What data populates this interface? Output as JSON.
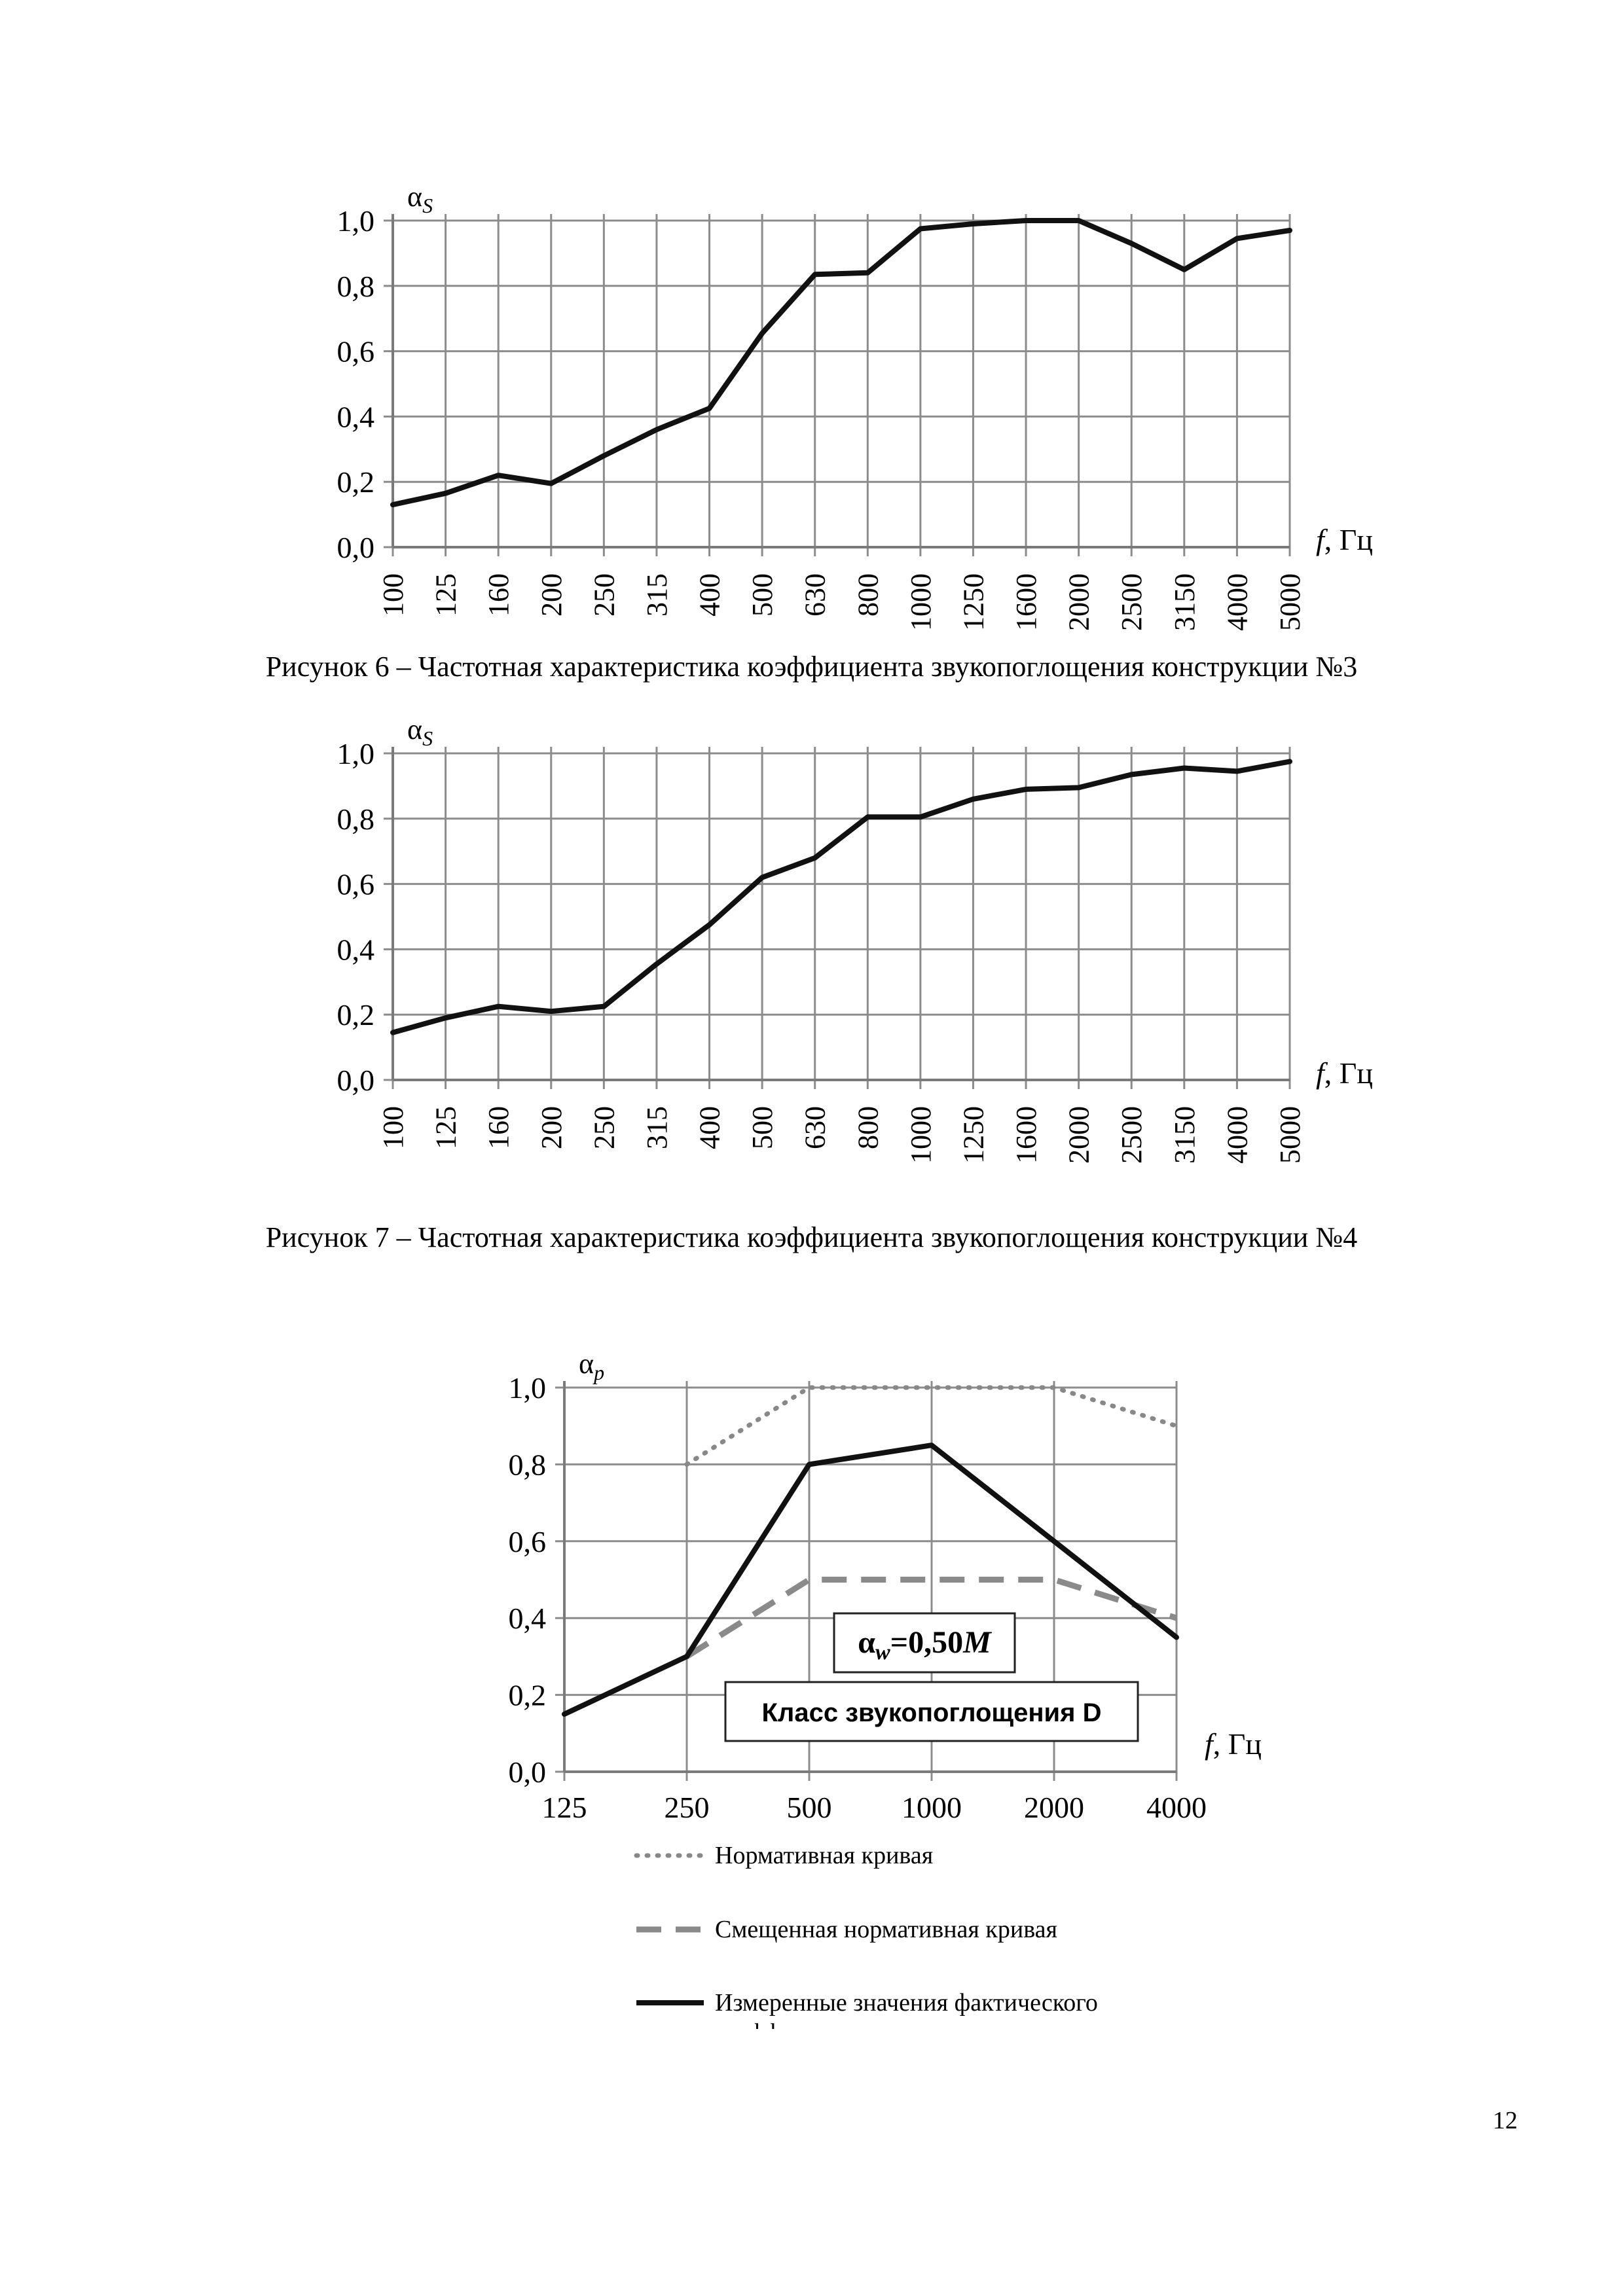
{
  "chart_data": [
    {
      "type": "line",
      "ylabel": "αS",
      "xlabel": "f, Гц",
      "ylim": [
        0,
        1.0
      ],
      "grid": true,
      "y_ticks": [
        "0,0",
        "0,2",
        "0,4",
        "0,6",
        "0,8",
        "1,0"
      ],
      "categories": [
        "100",
        "125",
        "160",
        "200",
        "250",
        "315",
        "400",
        "500",
        "630",
        "800",
        "1000",
        "1250",
        "1600",
        "2000",
        "2500",
        "3150",
        "4000",
        "5000"
      ],
      "series": [
        {
          "values": [
            0.13,
            0.165,
            0.22,
            0.195,
            0.28,
            0.36,
            0.425,
            0.655,
            0.835,
            0.84,
            0.975,
            0.99,
            1.0,
            1.0,
            0.93,
            0.85,
            0.945,
            0.97
          ],
          "color": "#111111"
        }
      ],
      "caption": "Рисунок 6 – Частотная характеристика коэффициента звукопоглощения конструкции №3"
    },
    {
      "type": "line",
      "ylabel": "αS",
      "xlabel": "f, Гц",
      "ylim": [
        0,
        1.0
      ],
      "grid": true,
      "y_ticks": [
        "0,0",
        "0,2",
        "0,4",
        "0,6",
        "0,8",
        "1,0"
      ],
      "categories": [
        "100",
        "125",
        "160",
        "200",
        "250",
        "315",
        "400",
        "500",
        "630",
        "800",
        "1000",
        "1250",
        "1600",
        "2000",
        "2500",
        "3150",
        "4000",
        "5000"
      ],
      "series": [
        {
          "values": [
            0.145,
            0.19,
            0.225,
            0.21,
            0.225,
            0.355,
            0.475,
            0.62,
            0.68,
            0.805,
            0.805,
            0.86,
            0.89,
            0.895,
            0.935,
            0.955,
            0.945,
            0.975
          ],
          "color": "#111111"
        }
      ],
      "caption": "Рисунок 7 – Частотная характеристика коэффициента звукопоглощения конструкции №4"
    },
    {
      "type": "line",
      "ylabel": "αp",
      "xlabel": "f, Гц",
      "ylim": [
        0,
        1.0
      ],
      "grid": true,
      "y_ticks": [
        "0,0",
        "0,2",
        "0,4",
        "0,6",
        "0,8",
        "1,0"
      ],
      "categories": [
        "125",
        "250",
        "500",
        "1000",
        "2000",
        "4000"
      ],
      "series": [
        {
          "name": "Нормативная кривая",
          "values": [
            null,
            0.8,
            1.0,
            1.0,
            1.0,
            0.9
          ],
          "color": "#888888",
          "style": "dotted"
        },
        {
          "name": "Смещенная нормативная кривая",
          "values": [
            null,
            0.3,
            0.5,
            0.5,
            0.5,
            0.4
          ],
          "color": "#8a8a8a",
          "style": "dashed"
        },
        {
          "name": "Измеренные значения фактического коэффициента звукопоглощения",
          "values": [
            0.15,
            0.3,
            0.8,
            0.85,
            0.6,
            0.35
          ],
          "color": "#111111",
          "style": "solid"
        }
      ],
      "annotations": {
        "alpha_w_prefix": "α",
        "alpha_w_sub": "w",
        "alpha_w_value": "=0,50",
        "alpha_w_suffix": "M",
        "class_label": "Класс звукопоглощения D"
      }
    }
  ],
  "page_number": "12"
}
